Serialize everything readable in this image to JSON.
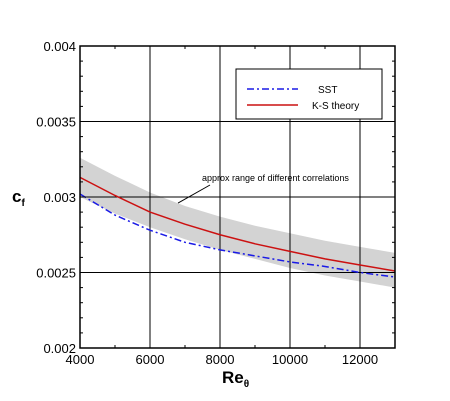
{
  "chart_data": {
    "type": "line",
    "title": "",
    "xlabel": "Re",
    "xlabel_sub": "θ",
    "ylabel": "c",
    "ylabel_sub": "f",
    "xlim": [
      4000,
      13000
    ],
    "ylim": [
      0.002,
      0.004
    ],
    "xticks": [
      4000,
      6000,
      8000,
      10000,
      12000
    ],
    "xtick_labels": [
      "4000",
      "6000",
      "8000",
      "10000",
      "12000"
    ],
    "yticks": [
      0.002,
      0.0025,
      0.003,
      0.0035,
      0.004
    ],
    "ytick_labels": [
      "0.002",
      "0.0025",
      "0.003",
      "0.0035",
      "0.004"
    ],
    "grid": true,
    "legend_position": "top-right",
    "x": [
      4000,
      5000,
      6000,
      7000,
      8000,
      9000,
      10000,
      11000,
      12000,
      13000
    ],
    "series": [
      {
        "name": "SST",
        "style": "dash-dot",
        "color": "#1a1ae6",
        "values": [
          0.00302,
          0.00288,
          0.00278,
          0.0027,
          0.00265,
          0.00261,
          0.00257,
          0.00254,
          0.0025,
          0.00247
        ]
      },
      {
        "name": "K-S theory",
        "style": "solid",
        "color": "#cc1111",
        "values": [
          0.00313,
          0.00301,
          0.0029,
          0.00282,
          0.00275,
          0.00269,
          0.00264,
          0.00259,
          0.00255,
          0.00251
        ]
      }
    ],
    "band": {
      "color": "#d3d3d3",
      "lower": [
        0.003,
        0.00289,
        0.0028,
        0.00272,
        0.00265,
        0.00259,
        0.00253,
        0.00248,
        0.00244,
        0.0024
      ],
      "upper": [
        0.00326,
        0.00314,
        0.00303,
        0.00294,
        0.00287,
        0.00281,
        0.00276,
        0.00271,
        0.00267,
        0.00263
      ]
    },
    "annotations": [
      {
        "text": "approx range of different correlations",
        "arrow_to": [
          6800,
          0.00296
        ]
      }
    ]
  }
}
